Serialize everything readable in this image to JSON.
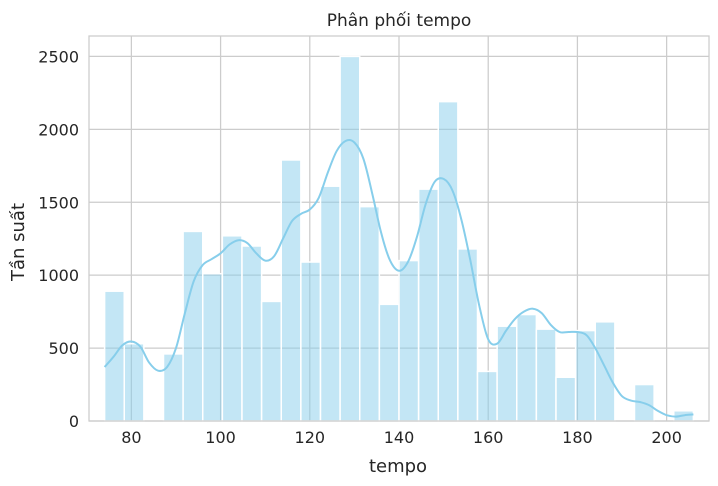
{
  "chart_data": {
    "type": "bar",
    "title": "Phân phối tempo",
    "xlabel": "tempo",
    "ylabel": "Tần suất",
    "xlim": [
      70.5,
      209.5
    ],
    "ylim": [
      0,
      2640
    ],
    "grid": true,
    "x_ticks": [
      80,
      100,
      120,
      140,
      160,
      180,
      200
    ],
    "y_ticks": [
      0,
      500,
      1000,
      1500,
      2000,
      2500
    ],
    "bar_color": "#87ceeb",
    "bar_opacity": 0.5,
    "kde_color": "#87ceeb",
    "bins": [
      {
        "x0": 74.0,
        "x1": 78.4,
        "count": 890
      },
      {
        "x0": 78.4,
        "x1": 82.8,
        "count": 530
      },
      {
        "x0": 82.8,
        "x1": 87.2,
        "count": 0
      },
      {
        "x0": 87.2,
        "x1": 91.6,
        "count": 460
      },
      {
        "x0": 91.6,
        "x1": 96.0,
        "count": 1300
      },
      {
        "x0": 96.0,
        "x1": 100.4,
        "count": 1010
      },
      {
        "x0": 100.4,
        "x1": 104.8,
        "count": 1270
      },
      {
        "x0": 104.8,
        "x1": 109.2,
        "count": 1200
      },
      {
        "x0": 109.2,
        "x1": 113.6,
        "count": 820
      },
      {
        "x0": 113.6,
        "x1": 118.0,
        "count": 1790
      },
      {
        "x0": 118.0,
        "x1": 122.4,
        "count": 1090
      },
      {
        "x0": 122.4,
        "x1": 126.8,
        "count": 1610
      },
      {
        "x0": 126.8,
        "x1": 131.2,
        "count": 2500
      },
      {
        "x0": 131.2,
        "x1": 135.6,
        "count": 1470
      },
      {
        "x0": 135.6,
        "x1": 140.0,
        "count": 800
      },
      {
        "x0": 140.0,
        "x1": 144.4,
        "count": 1100
      },
      {
        "x0": 144.4,
        "x1": 148.8,
        "count": 1590
      },
      {
        "x0": 148.8,
        "x1": 153.2,
        "count": 2190
      },
      {
        "x0": 153.2,
        "x1": 157.6,
        "count": 1180
      },
      {
        "x0": 157.6,
        "x1": 162.0,
        "count": 340
      },
      {
        "x0": 162.0,
        "x1": 166.4,
        "count": 650
      },
      {
        "x0": 166.4,
        "x1": 170.8,
        "count": 730
      },
      {
        "x0": 170.8,
        "x1": 175.2,
        "count": 630
      },
      {
        "x0": 175.2,
        "x1": 179.6,
        "count": 300
      },
      {
        "x0": 179.6,
        "x1": 184.0,
        "count": 620
      },
      {
        "x0": 184.0,
        "x1": 188.4,
        "count": 680
      },
      {
        "x0": 188.4,
        "x1": 192.8,
        "count": 0
      },
      {
        "x0": 192.8,
        "x1": 197.2,
        "count": 250
      },
      {
        "x0": 197.2,
        "x1": 201.6,
        "count": 0
      },
      {
        "x0": 201.6,
        "x1": 206.0,
        "count": 70
      }
    ],
    "kde": [
      [
        74,
        370
      ],
      [
        76,
        440
      ],
      [
        78,
        520
      ],
      [
        80,
        545
      ],
      [
        82,
        510
      ],
      [
        84,
        400
      ],
      [
        86,
        345
      ],
      [
        88,
        370
      ],
      [
        90,
        500
      ],
      [
        92,
        740
      ],
      [
        94,
        960
      ],
      [
        96,
        1070
      ],
      [
        98,
        1110
      ],
      [
        100,
        1150
      ],
      [
        102,
        1210
      ],
      [
        104,
        1240
      ],
      [
        106,
        1220
      ],
      [
        108,
        1150
      ],
      [
        110,
        1100
      ],
      [
        112,
        1130
      ],
      [
        114,
        1250
      ],
      [
        116,
        1370
      ],
      [
        118,
        1420
      ],
      [
        120,
        1450
      ],
      [
        122,
        1530
      ],
      [
        124,
        1700
      ],
      [
        126,
        1850
      ],
      [
        128,
        1920
      ],
      [
        130,
        1910
      ],
      [
        132,
        1800
      ],
      [
        134,
        1560
      ],
      [
        136,
        1290
      ],
      [
        138,
        1100
      ],
      [
        140,
        1030
      ],
      [
        142,
        1090
      ],
      [
        144,
        1260
      ],
      [
        146,
        1490
      ],
      [
        148,
        1640
      ],
      [
        150,
        1660
      ],
      [
        152,
        1580
      ],
      [
        154,
        1380
      ],
      [
        156,
        1100
      ],
      [
        158,
        790
      ],
      [
        160,
        560
      ],
      [
        162,
        530
      ],
      [
        164,
        620
      ],
      [
        166,
        700
      ],
      [
        168,
        750
      ],
      [
        170,
        770
      ],
      [
        172,
        740
      ],
      [
        174,
        660
      ],
      [
        176,
        610
      ],
      [
        178,
        610
      ],
      [
        180,
        610
      ],
      [
        182,
        590
      ],
      [
        184,
        500
      ],
      [
        186,
        380
      ],
      [
        188,
        260
      ],
      [
        190,
        170
      ],
      [
        192,
        140
      ],
      [
        194,
        130
      ],
      [
        196,
        110
      ],
      [
        198,
        70
      ],
      [
        200,
        40
      ],
      [
        202,
        30
      ],
      [
        204,
        40
      ],
      [
        206,
        45
      ]
    ]
  }
}
